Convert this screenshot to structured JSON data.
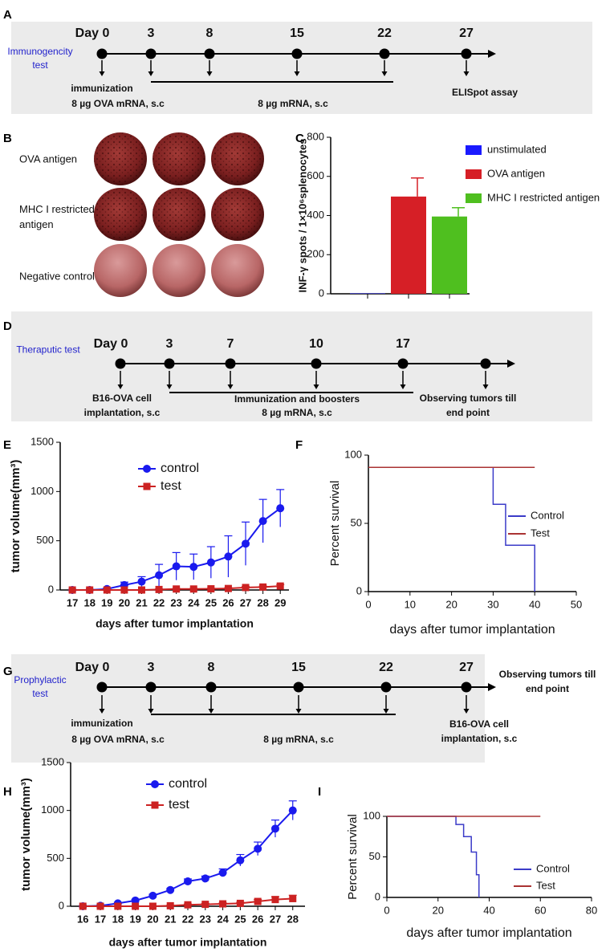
{
  "panel_labels": [
    "A",
    "B",
    "C",
    "D",
    "E",
    "F",
    "G",
    "H",
    "I"
  ],
  "timelines": [
    {
      "label": "Immunogencity test",
      "days": [
        "Day 0",
        "3",
        "8",
        "15",
        "22",
        "27"
      ],
      "notes": [
        "immunization",
        "8 µg OVA mRNA, s.c",
        "8 µg mRNA, s.c",
        "ELISpot assay"
      ]
    },
    {
      "label": "Theraputic test",
      "days": [
        "Day 0",
        "3",
        "7",
        "10",
        "17"
      ],
      "notes": [
        "B16-OVA cell implantation, s.c",
        "Immunization and boosters",
        "8 µg mRNA, s.c",
        "Observing tumors till end point"
      ]
    },
    {
      "label": "Prophylactic test",
      "days": [
        "Day 0",
        "3",
        "8",
        "15",
        "22",
        "27"
      ],
      "notes": [
        "immunization",
        "8 µg OVA mRNA, s.c",
        "8 µg mRNA, s.c",
        "B16-OVA cell implantation, s.c",
        "Observing tumors till end point"
      ]
    }
  ],
  "wells": {
    "row_labels": [
      "OVA antigen",
      "MHC I restricted antigen",
      "Negative control"
    ]
  },
  "chart_data": [
    {
      "type": "bar",
      "y_label": "INF-γ spots / 1×10⁶splenocytes",
      "categories": [
        null,
        null,
        null
      ],
      "series": [
        {
          "name": "unstimulated",
          "color": "#1a1aff",
          "values": [
            2,
            null,
            null
          ],
          "errors": [
            null,
            null,
            null
          ]
        },
        {
          "name": "OVA antigen",
          "color": "#d61f26",
          "values": [
            null,
            497,
            null
          ],
          "errors": [
            null,
            95,
            null
          ]
        },
        {
          "name": "MHC I restricted antigen",
          "color": "#4fbf1f",
          "values": [
            null,
            null,
            395
          ],
          "errors": [
            null,
            null,
            45
          ]
        }
      ],
      "ylim": [
        0,
        800
      ],
      "yticks": [
        0,
        200,
        400,
        600,
        800
      ]
    },
    {
      "type": "line",
      "x_label": "days after tumor implantation",
      "y_label": "tumor volume(mm³)",
      "x": [
        17,
        18,
        19,
        20,
        21,
        22,
        23,
        24,
        25,
        26,
        27,
        28,
        29
      ],
      "series": [
        {
          "name": "control",
          "color": "#1a1aee",
          "marker": "circle",
          "values": [
            0,
            0,
            10,
            50,
            85,
            150,
            240,
            235,
            280,
            340,
            470,
            700,
            830
          ],
          "errors": [
            0,
            0,
            10,
            30,
            50,
            110,
            140,
            130,
            160,
            210,
            220,
            220,
            190
          ]
        },
        {
          "name": "test",
          "color": "#cc2222",
          "marker": "square",
          "values": [
            0,
            0,
            0,
            0,
            0,
            5,
            10,
            10,
            12,
            15,
            25,
            30,
            40
          ],
          "errors": [
            0,
            0,
            0,
            0,
            0,
            5,
            5,
            5,
            5,
            8,
            10,
            10,
            15
          ]
        }
      ],
      "xlim": [
        16.3,
        29.5
      ],
      "xticks": [
        17,
        18,
        19,
        20,
        21,
        22,
        23,
        24,
        25,
        26,
        27,
        28,
        29
      ],
      "ylim": [
        0,
        1500
      ],
      "yticks": [
        0,
        500,
        1000,
        1500
      ]
    },
    {
      "type": "line",
      "x_label": "days after tumor implantation",
      "y_label": "Percent survival",
      "series": [
        {
          "name": "Control",
          "color": "#3b3bc8",
          "x": [
            0,
            30,
            30,
            33,
            33,
            40,
            40
          ],
          "values": [
            91,
            91,
            64,
            64,
            34,
            34,
            0
          ]
        },
        {
          "name": "Test",
          "color": "#aa3333",
          "x": [
            0,
            40
          ],
          "values": [
            91,
            91
          ]
        }
      ],
      "xlim": [
        0,
        50
      ],
      "xticks": [
        0,
        10,
        20,
        30,
        40,
        50
      ],
      "ylim": [
        0,
        100
      ],
      "yticks": [
        0,
        50,
        100
      ]
    },
    {
      "type": "line",
      "x_label": "days after tumor implantation",
      "y_label": "tumor volume(mm³)",
      "x": [
        16,
        17,
        18,
        19,
        20,
        21,
        22,
        23,
        24,
        25,
        26,
        27,
        28
      ],
      "series": [
        {
          "name": "control",
          "color": "#1a1aee",
          "marker": "circle",
          "values": [
            0,
            5,
            30,
            60,
            110,
            170,
            260,
            290,
            350,
            480,
            600,
            810,
            1000
          ],
          "errors": [
            0,
            3,
            10,
            10,
            15,
            15,
            25,
            25,
            40,
            60,
            70,
            90,
            100
          ]
        },
        {
          "name": "test",
          "color": "#cc2222",
          "marker": "square",
          "values": [
            0,
            0,
            0,
            0,
            0,
            5,
            15,
            20,
            25,
            30,
            50,
            70,
            80
          ],
          "errors": [
            0,
            0,
            0,
            0,
            0,
            5,
            8,
            10,
            10,
            12,
            20,
            30,
            35
          ]
        }
      ],
      "xlim": [
        15.3,
        28.7
      ],
      "xticks": [
        16,
        17,
        18,
        19,
        20,
        21,
        22,
        23,
        24,
        25,
        26,
        27,
        28
      ],
      "ylim": [
        0,
        1500
      ],
      "yticks": [
        0,
        500,
        1000,
        1500
      ]
    },
    {
      "type": "line",
      "x_label": "days after tumor implantation",
      "y_label": "Percent survival",
      "series": [
        {
          "name": "Control",
          "color": "#3b3bc8",
          "x": [
            0,
            27,
            27,
            30,
            30,
            33,
            33,
            35,
            35,
            36,
            36
          ],
          "values": [
            100,
            100,
            90,
            90,
            75,
            75,
            56,
            56,
            28,
            28,
            0
          ]
        },
        {
          "name": "Test",
          "color": "#aa3333",
          "x": [
            0,
            60
          ],
          "values": [
            100,
            100
          ]
        }
      ],
      "xlim": [
        0,
        80
      ],
      "xticks": [
        0,
        20,
        40,
        60,
        80
      ],
      "ylim": [
        0,
        100
      ],
      "yticks": [
        0,
        50,
        100
      ]
    }
  ]
}
